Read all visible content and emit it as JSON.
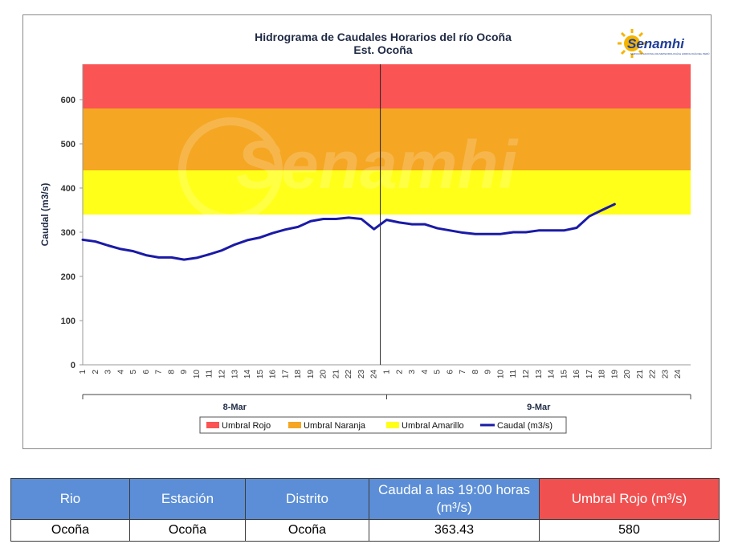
{
  "logo": {
    "text": "Senamhi",
    "subtext": "SERVICIO NACIONAL DE METEOROLOGÍA E HIDROLOGÍA DEL PERÚ"
  },
  "watermark": {
    "text": "Senamhi"
  },
  "colors": {
    "umbral_rojo": "#fa5454",
    "umbral_naranja": "#f5a623",
    "umbral_amarillo": "#ffff1a",
    "caudal": "#1a1aa6",
    "table_header": "#5b8ed6",
    "table_header_red": "#f05050"
  },
  "chart_data": {
    "type": "line",
    "title": "Hidrograma de Caudales Horarios del río Ocoña",
    "subtitle": "Est. Ocoña",
    "xlabel": "",
    "ylabel": "Caudal  (m3/s)",
    "ylim": [
      0,
      680
    ],
    "yticks": [
      0,
      100,
      200,
      300,
      400,
      500,
      600
    ],
    "days": [
      "8-Mar",
      "9-Mar"
    ],
    "hour_ticks": [
      "1",
      "2",
      "3",
      "4",
      "5",
      "6",
      "7",
      "8",
      "9",
      "10",
      "11",
      "12",
      "13",
      "14",
      "15",
      "16",
      "17",
      "18",
      "19",
      "20",
      "21",
      "22",
      "23",
      "24"
    ],
    "thresholds": [
      {
        "name": "Umbral Rojo",
        "from": 580,
        "to": 680
      },
      {
        "name": "Umbral Naranja",
        "from": 440,
        "to": 580
      },
      {
        "name": "Umbral Amarillo",
        "from": 340,
        "to": 440
      }
    ],
    "series": [
      {
        "name": "Caudal (m3/s)",
        "values": [
          283,
          279,
          270,
          262,
          257,
          248,
          243,
          243,
          238,
          242,
          250,
          259,
          272,
          282,
          288,
          298,
          306,
          312,
          325,
          330,
          330,
          333,
          330,
          307,
          328,
          322,
          318,
          318,
          309,
          304,
          299,
          296,
          296,
          296,
          300,
          300,
          304,
          304,
          304,
          310,
          336,
          350,
          363.43
        ]
      }
    ],
    "legend": [
      "Umbral Rojo",
      "Umbral Naranja",
      "Umbral Amarillo",
      "Caudal (m3/s)"
    ],
    "legend_position": "bottom"
  },
  "table": {
    "headers": [
      "Rio",
      "Estación",
      "Distrito",
      "Caudal a las 19:00 horas (m³/s)",
      "Umbral Rojo (m³/s)"
    ],
    "rows": [
      [
        "Ocoña",
        "Ocoña",
        "Ocoña",
        "363.43",
        "580"
      ]
    ]
  }
}
